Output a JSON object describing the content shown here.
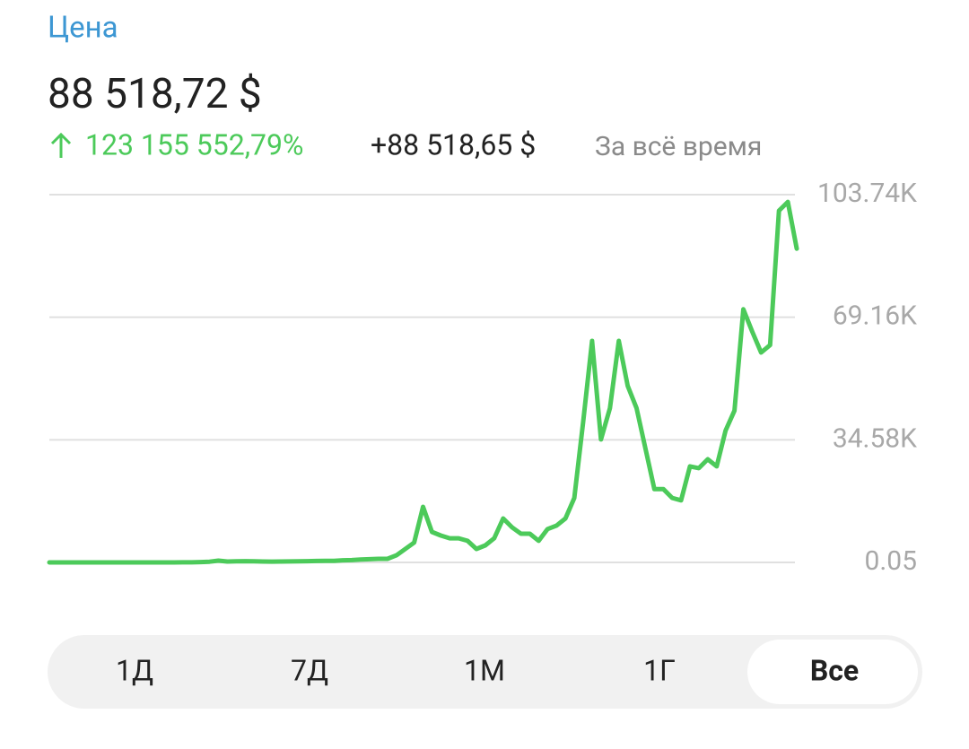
{
  "header": {
    "title": "Цена",
    "price": "88 518,72 $",
    "change_percent": "123 155 552,79%",
    "change_value": "+88 518,65 $",
    "period": "За всё время"
  },
  "chart_data": {
    "type": "line",
    "series": [
      {
        "color": "#4cca5a",
        "values": [
          0.05,
          0.06,
          0.07,
          0.1,
          0.2,
          0.3,
          0.5,
          1,
          2,
          5,
          10,
          12,
          8,
          5,
          10,
          13,
          30,
          100,
          200,
          500,
          250,
          300,
          350,
          300,
          250,
          230,
          250,
          280,
          300,
          350,
          400,
          450,
          450,
          600,
          650,
          800,
          900,
          1000,
          1000,
          2000,
          3800,
          5600,
          15700,
          8600,
          7600,
          6800,
          6800,
          6100,
          3800,
          4800,
          6800,
          12400,
          9900,
          8100,
          8100,
          6100,
          9400,
          10400,
          12400,
          18200,
          39700,
          62500,
          34700,
          43500,
          62500,
          49800,
          43500,
          32100,
          20700,
          20700,
          18200,
          17500,
          27100,
          26600,
          29100,
          27100,
          37200,
          42800,
          71400,
          65100,
          59200,
          61300,
          99200,
          101700,
          88518.72
        ]
      }
    ],
    "ylim": [
      0.05,
      103740
    ],
    "yticks": [
      {
        "value": 0.05,
        "label": "0.05"
      },
      {
        "value": 34580,
        "label": "34.58K"
      },
      {
        "value": 69160,
        "label": "69.16K"
      },
      {
        "value": 103740,
        "label": "103.74K"
      }
    ],
    "grid": true
  },
  "ranges": {
    "options": [
      "1Д",
      "7Д",
      "1М",
      "1Г",
      "Все"
    ],
    "selected": "Все"
  }
}
